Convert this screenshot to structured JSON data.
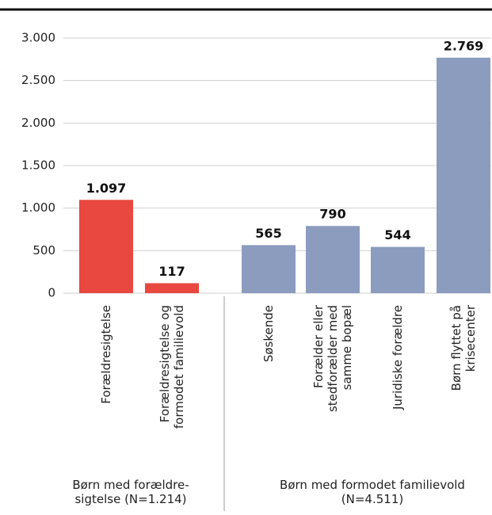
{
  "chart_data": {
    "type": "bar",
    "categories": [
      "Forældresigtelse",
      "Forældresigtelse og\nformodet familievold",
      "Søskende",
      "Forælder eller\nstedforælder med\nsamme bopæl",
      "Juridiske forældre",
      "Børn flyttet på\nkrisecenter"
    ],
    "values": [
      1097,
      117,
      565,
      790,
      544,
      2769
    ],
    "value_labels": [
      "1.097",
      "117",
      "565",
      "790",
      "544",
      "2.769"
    ],
    "colors": [
      "#e8483f",
      "#e8483f",
      "#8c9cbf",
      "#8c9cbf",
      "#8c9cbf",
      "#8c9cbf"
    ],
    "group_labels": [
      "Børn med forældre-\nsigtelse (N=1.214)",
      "Børn med formodet familievold\n(N=4.511)"
    ],
    "ylim": [
      0,
      3000
    ],
    "yticks": [
      0,
      500,
      {
        "value": 1000,
        "label": "1.000"
      },
      {
        "value": 1500,
        "label": "1.500"
      },
      {
        "value": 2000,
        "label": "2.000"
      },
      {
        "value": 2500,
        "label": "2.500"
      },
      {
        "value": 3000,
        "label": "3.000"
      }
    ],
    "grid": true
  }
}
